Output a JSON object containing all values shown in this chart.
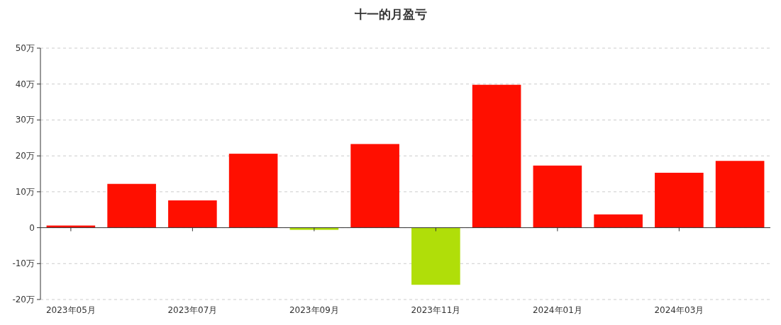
{
  "chart_data": {
    "type": "bar",
    "title": "十一的月盈亏",
    "categories": [
      "2023年05月",
      null,
      "2023年07月",
      null,
      "2023年09月",
      null,
      "2023年11月",
      null,
      "2024年01月",
      null,
      "2024年03月",
      null
    ],
    "values": [
      0.6,
      12.2,
      7.6,
      20.6,
      -0.6,
      23.3,
      -15.9,
      39.8,
      17.3,
      3.7,
      15.3,
      18.6
    ],
    "colors": [
      "#ff0f00",
      "#ff0f00",
      "#ff0f00",
      "#ff0f00",
      "#b0de09",
      "#ff0f00",
      "#b0de09",
      "#ff0f00",
      "#ff0f00",
      "#ff0f00",
      "#ff0f00",
      "#ff0f00"
    ],
    "ylim": [
      -20,
      50
    ],
    "yticks": [
      {
        "value": -20,
        "label": "-20万"
      },
      {
        "value": -10,
        "label": "-10万"
      },
      0,
      {
        "value": 10,
        "label": "10万"
      },
      {
        "value": 20,
        "label": "20万"
      },
      {
        "value": 30,
        "label": "30万"
      },
      {
        "value": 40,
        "label": "40万"
      },
      {
        "value": 50,
        "label": "50万"
      }
    ],
    "grid": "y"
  }
}
